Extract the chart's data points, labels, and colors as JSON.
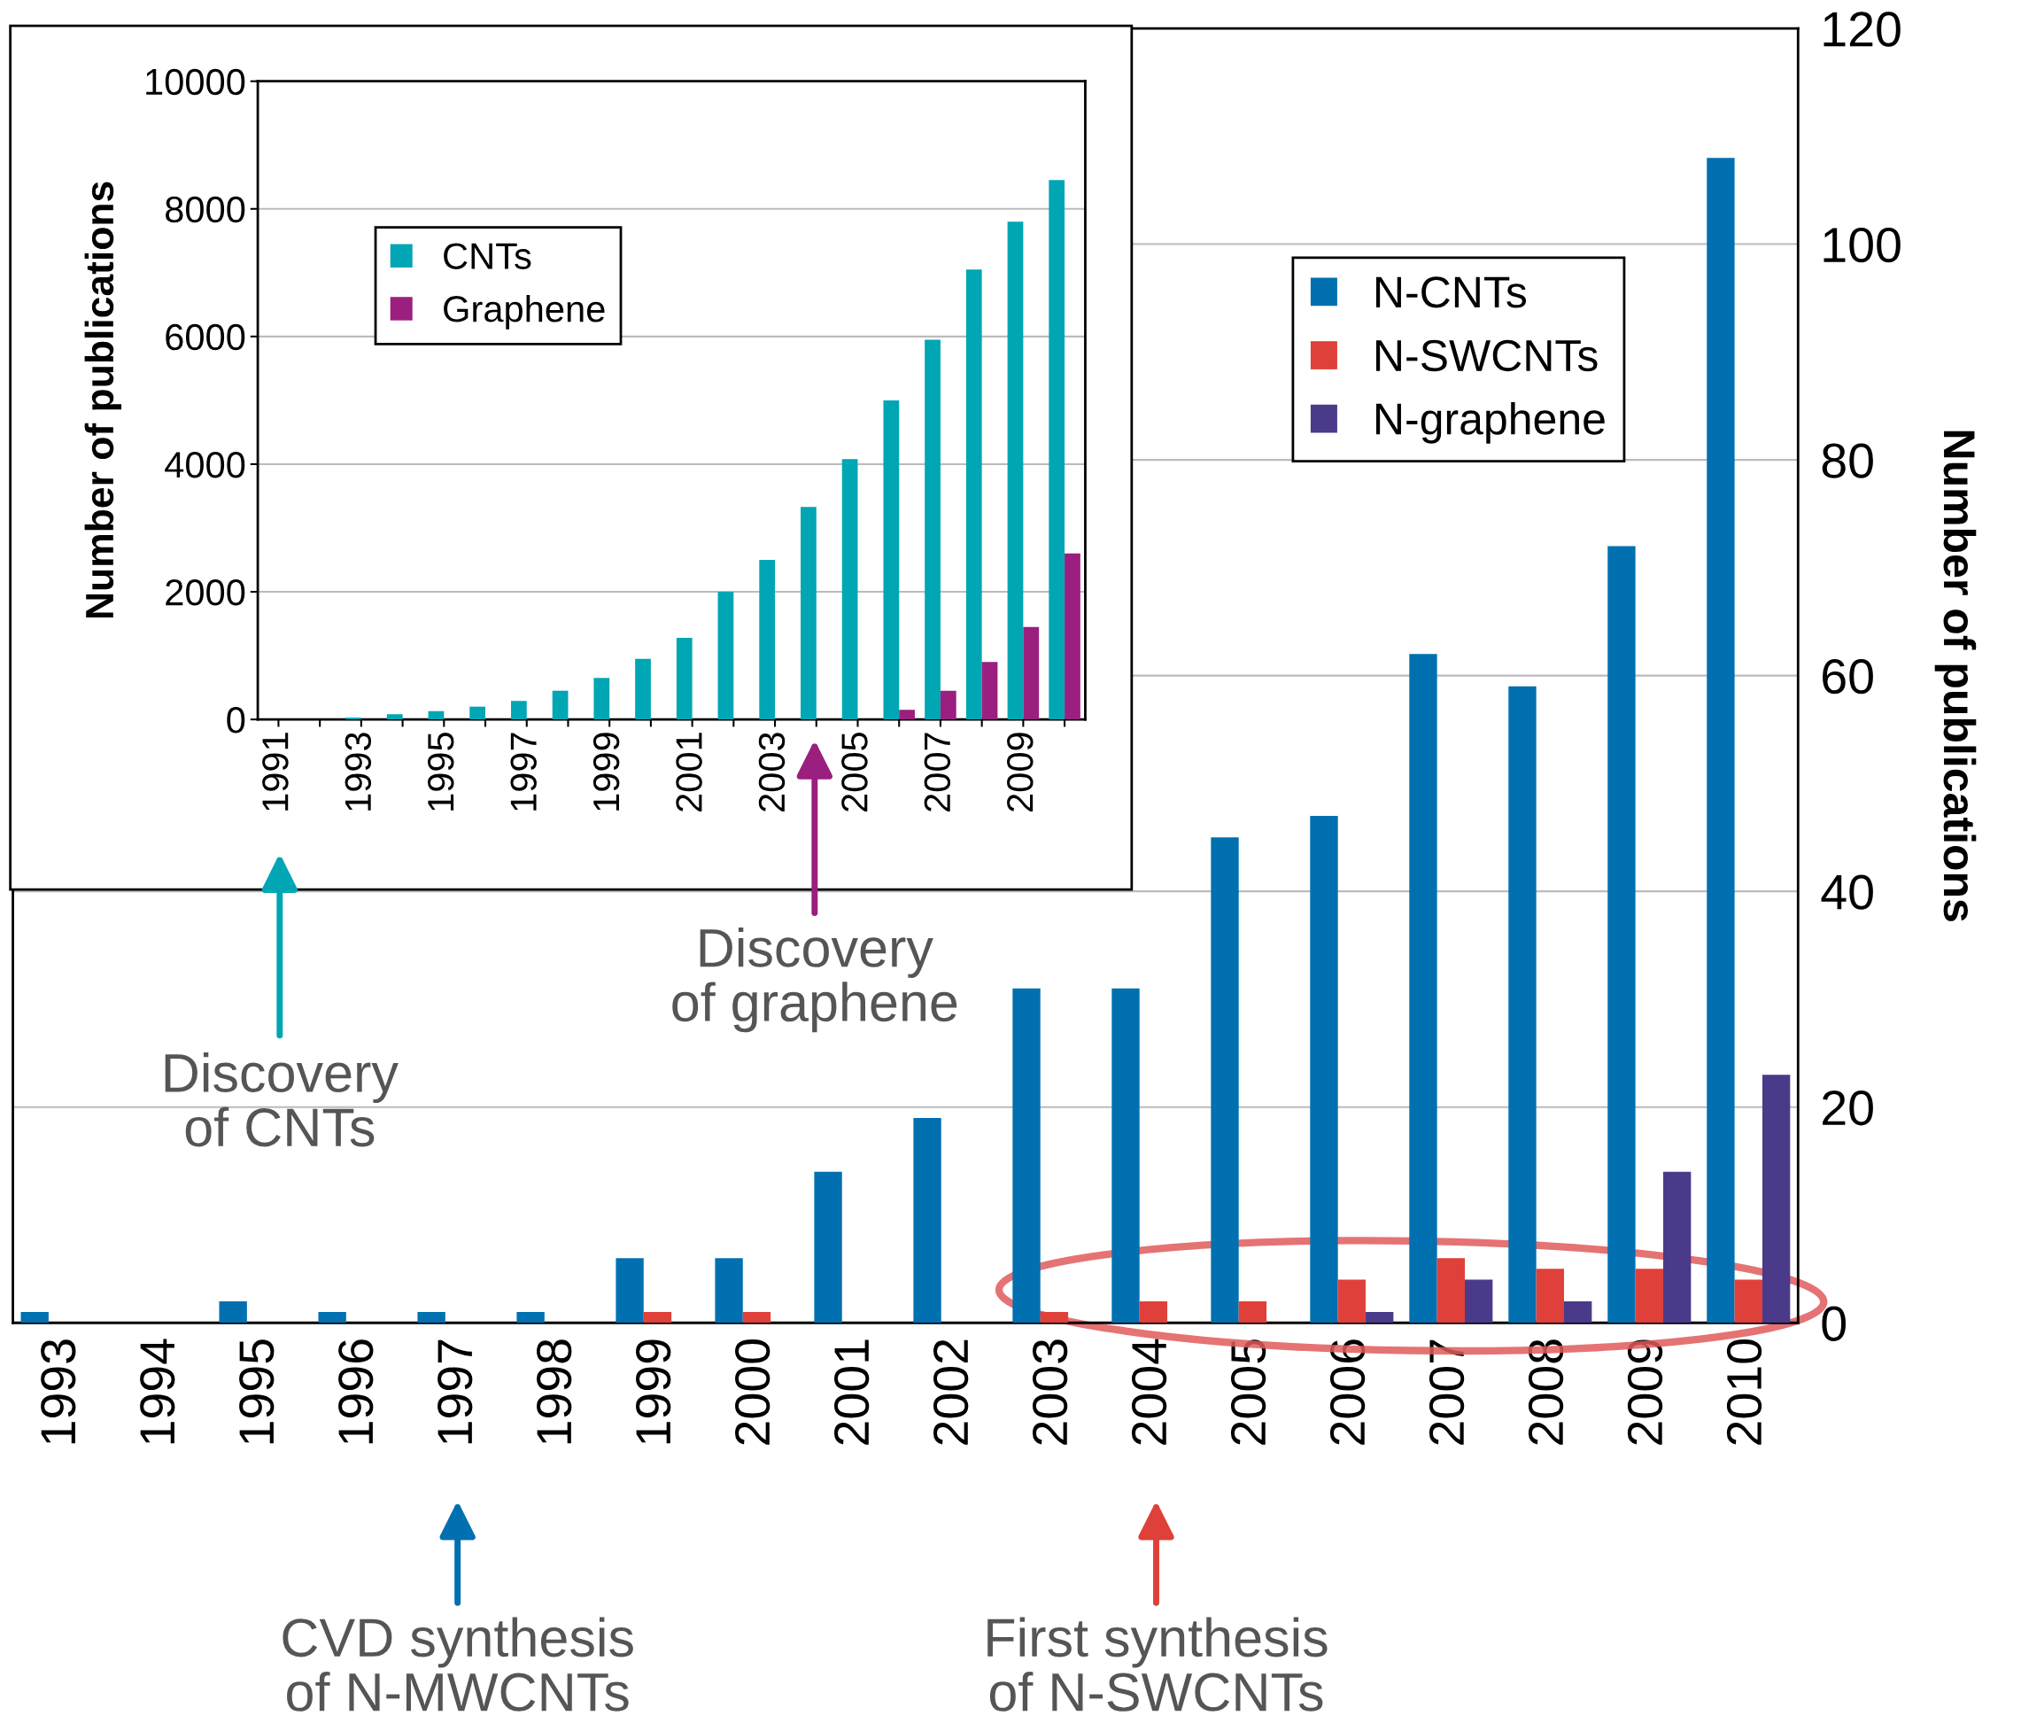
{
  "chart_data": [
    {
      "type": "bar",
      "categories": [
        "1993",
        "1994",
        "1995",
        "1996",
        "1997",
        "1998",
        "1999",
        "2000",
        "2001",
        "2002",
        "2003",
        "2004",
        "2005",
        "2006",
        "2007",
        "2008",
        "2009",
        "2010"
      ],
      "series": [
        {
          "name": "N-CNTs",
          "color": "#0070b0",
          "axis": "y2",
          "values": [
            1,
            0,
            2,
            1,
            1,
            1,
            6,
            6,
            14,
            19,
            31,
            31,
            45,
            47,
            62,
            59,
            72,
            108
          ]
        },
        {
          "name": "N-SWCNTs",
          "color": "#e0403a",
          "axis": "y2",
          "values": [
            0,
            0,
            0,
            0,
            0,
            0,
            1,
            1,
            0,
            0,
            1,
            2,
            2,
            4,
            6,
            5,
            5,
            4
          ]
        },
        {
          "name": "N-graphene",
          "color": "#4b3a8a",
          "axis": "y2",
          "values": [
            0,
            0,
            0,
            0,
            0,
            0,
            0,
            0,
            0,
            0,
            0,
            0,
            0,
            1,
            4,
            2,
            14,
            23
          ]
        }
      ],
      "y2lim": [
        0,
        120
      ],
      "y2ticks": [
        0,
        20,
        40,
        60,
        80,
        100,
        120
      ],
      "y2label": "Number of publications",
      "legend": "top right",
      "grid": "y",
      "annotations": [
        "CVD synthesis\nof N-MWCNTs",
        "First synthesis\nof N-SWCNTs"
      ]
    },
    {
      "type": "bar",
      "categories": [
        "1991",
        null,
        "1993",
        null,
        "1995",
        null,
        "1997",
        null,
        "1999",
        null,
        "2001",
        null,
        "2003",
        null,
        "2005",
        null,
        "2007",
        null,
        "2009",
        null
      ],
      "series": [
        {
          "name": "CNTs",
          "color": "#00a6b4",
          "values": [
            0,
            0,
            30,
            80,
            130,
            200,
            290,
            450,
            650,
            950,
            1280,
            2000,
            2500,
            3330,
            4080,
            5000,
            5950,
            7050,
            7800,
            8450
          ]
        },
        {
          "name": "Graphene",
          "color": "#9b1f7e",
          "values": [
            0,
            0,
            0,
            0,
            0,
            0,
            0,
            0,
            0,
            0,
            0,
            0,
            0,
            0,
            0,
            150,
            450,
            900,
            1450,
            2600
          ]
        }
      ],
      "ylim": [
        0,
        10000
      ],
      "yticks": [
        0,
        2000,
        4000,
        6000,
        8000,
        10000
      ],
      "ylabel": "Number of publications",
      "legend": "top left",
      "grid": "y",
      "annotations": [
        "Discovery\nof CNTs",
        "Discovery\nof graphene"
      ]
    }
  ]
}
